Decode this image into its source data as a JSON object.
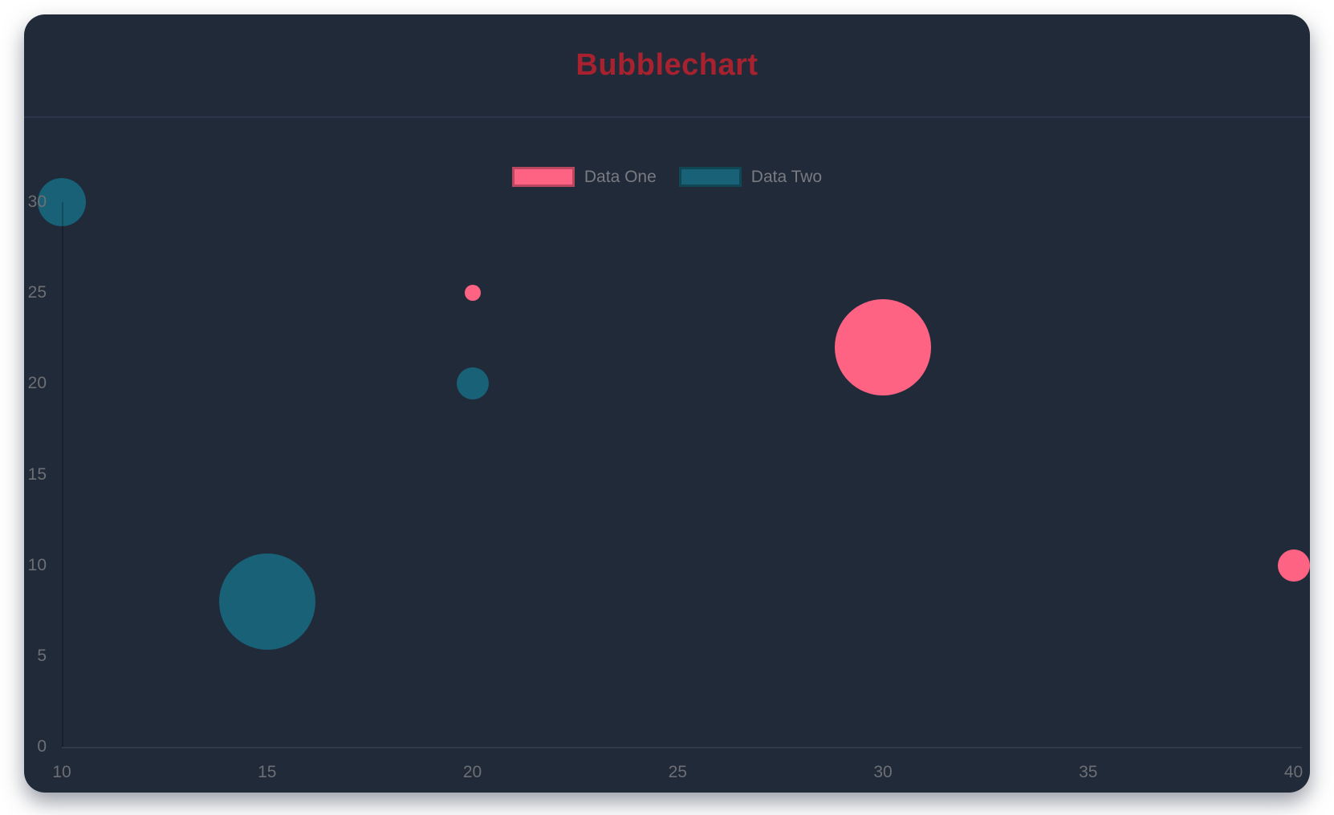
{
  "page": {
    "background_color": "#ffffff"
  },
  "card": {
    "background_color": "#212a39",
    "divider_color": "#2b364e"
  },
  "header": {
    "title": "Bubblechart",
    "title_color": "#a7222e"
  },
  "legend": {
    "text_color": "#797b80",
    "items": [
      {
        "label": "Data One",
        "color": "#ff6384"
      },
      {
        "label": "Data Two",
        "color": "#186177"
      }
    ]
  },
  "chart_data": {
    "type": "scatter",
    "variant": "bubble",
    "title": "Bubblechart",
    "xlabel": "",
    "ylabel": "",
    "xlim": [
      10,
      40
    ],
    "ylim": [
      0,
      30
    ],
    "x_ticks": [
      10,
      15,
      20,
      25,
      30,
      35,
      40
    ],
    "y_ticks": [
      0,
      5,
      10,
      15,
      20,
      25,
      30
    ],
    "tick_color": "#6d6f74",
    "grid": "axis-borders-only",
    "legend_position": "top",
    "series": [
      {
        "name": "Data One",
        "color": "#ff6384",
        "points": [
          {
            "x": 20,
            "y": 25,
            "r": 10
          },
          {
            "x": 30,
            "y": 22,
            "r": 60
          },
          {
            "x": 40,
            "y": 10,
            "r": 20
          }
        ]
      },
      {
        "name": "Data Two",
        "color": "#186177",
        "points": [
          {
            "x": 10,
            "y": 30,
            "r": 30
          },
          {
            "x": 20,
            "y": 20,
            "r": 20
          },
          {
            "x": 15,
            "y": 8,
            "r": 60
          }
        ]
      }
    ]
  }
}
